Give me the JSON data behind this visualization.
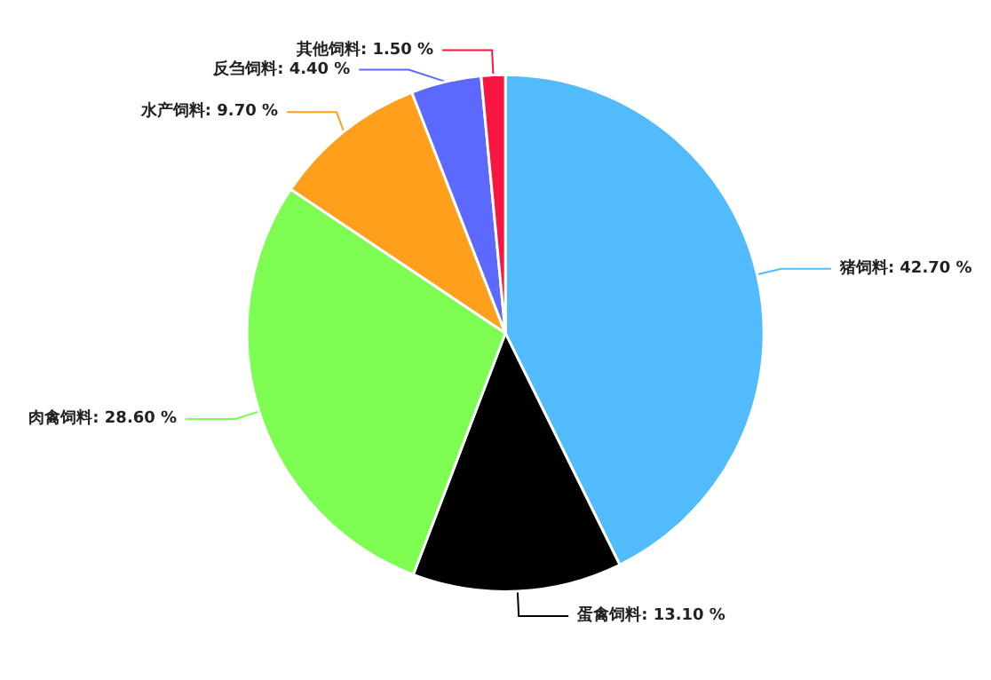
{
  "chart_data": {
    "type": "pie",
    "categories": [
      "猪饲料",
      "蛋禽饲料",
      "肉禽饲料",
      "水产饲料",
      "反刍饲料",
      "其他饲料"
    ],
    "values": [
      42.7,
      13.1,
      28.6,
      9.7,
      4.4,
      1.5
    ],
    "value_labels": [
      "42.70 %",
      "13.10 %",
      "28.60 %",
      "9.70 %",
      "4.40 %",
      "1.50 %"
    ],
    "colors": [
      "#52bbfc",
      "#000000",
      "#7dfc52",
      "#ff9f1c",
      "#5c69fc",
      "#f7163f"
    ],
    "legend": false
  }
}
